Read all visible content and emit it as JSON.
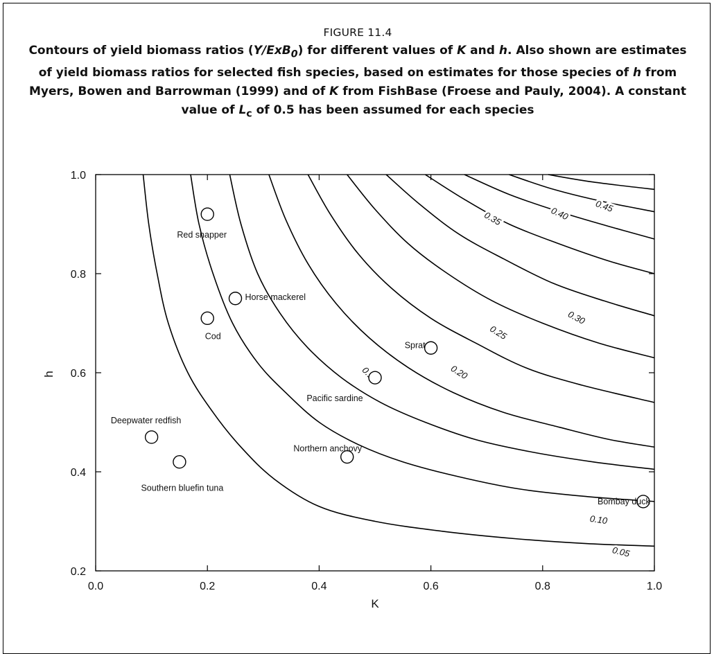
{
  "figure": {
    "number": "FIGURE 11.4",
    "title_parts": {
      "p1": "Contours of yield biomass ratios (",
      "p2": "Y/ExB",
      "p3": "0",
      "p4": ") for different values of ",
      "p5": "K",
      "p6": " and ",
      "p7": "h",
      "p8": ". Also shown are estimates of yield biomass ratios for selected fish species, based on estimates for those species of ",
      "p9": "h",
      "p10": " from Myers, Bowen and Barrowman (1999) and of ",
      "p11": "K",
      "p12": " from FishBase (Froese and Pauly, 2004). A constant value of ",
      "p13": "L",
      "p14": "c",
      "p15": " of 0.5 has been assumed for each species"
    }
  },
  "chart_data": {
    "type": "scatter",
    "xlabel": "K",
    "ylabel": "h",
    "xlim": [
      0.0,
      1.0
    ],
    "ylim": [
      0.2,
      1.0
    ],
    "x_ticks": [
      "0.0",
      "0.2",
      "0.4",
      "0.6",
      "0.8",
      "1.0"
    ],
    "y_ticks": [
      "0.2",
      "0.4",
      "0.6",
      "0.8",
      "1.0"
    ],
    "grid": false,
    "points": [
      {
        "name": "Red snapper",
        "K": 0.2,
        "h": 0.92
      },
      {
        "name": "Horse mackerel",
        "K": 0.25,
        "h": 0.75
      },
      {
        "name": "Cod",
        "K": 0.2,
        "h": 0.71
      },
      {
        "name": "Sprat",
        "K": 0.6,
        "h": 0.65
      },
      {
        "name": "Pacific sardine",
        "K": 0.5,
        "h": 0.59
      },
      {
        "name": "Deepwater redfish",
        "K": 0.1,
        "h": 0.47
      },
      {
        "name": "Southern bluefin tuna",
        "K": 0.15,
        "h": 0.42
      },
      {
        "name": "Northern anchovy",
        "K": 0.45,
        "h": 0.43
      },
      {
        "name": "Bombay duck",
        "K": 0.98,
        "h": 0.34
      }
    ],
    "contours": [
      {
        "level": "",
        "points": [
          [
            0.085,
            1.0
          ],
          [
            0.095,
            0.9
          ],
          [
            0.11,
            0.8
          ],
          [
            0.13,
            0.7
          ],
          [
            0.165,
            0.6
          ],
          [
            0.21,
            0.52
          ],
          [
            0.26,
            0.45
          ],
          [
            0.32,
            0.385
          ],
          [
            0.4,
            0.33
          ],
          [
            0.5,
            0.3
          ],
          [
            0.62,
            0.28
          ],
          [
            0.75,
            0.265
          ],
          [
            0.88,
            0.255
          ],
          [
            1.0,
            0.25
          ]
        ]
      },
      {
        "level": "0.05",
        "points": [
          [
            0.17,
            1.0
          ],
          [
            0.185,
            0.9
          ],
          [
            0.21,
            0.8
          ],
          [
            0.245,
            0.7
          ],
          [
            0.29,
            0.62
          ],
          [
            0.34,
            0.56
          ],
          [
            0.4,
            0.5
          ],
          [
            0.47,
            0.455
          ],
          [
            0.55,
            0.42
          ],
          [
            0.65,
            0.39
          ],
          [
            0.76,
            0.365
          ],
          [
            0.88,
            0.35
          ],
          [
            1.0,
            0.34
          ]
        ]
      },
      {
        "level": "0.10",
        "points": [
          [
            0.24,
            1.0
          ],
          [
            0.26,
            0.9
          ],
          [
            0.29,
            0.8
          ],
          [
            0.33,
            0.72
          ],
          [
            0.38,
            0.65
          ],
          [
            0.44,
            0.59
          ],
          [
            0.51,
            0.54
          ],
          [
            0.59,
            0.5
          ],
          [
            0.68,
            0.465
          ],
          [
            0.78,
            0.44
          ],
          [
            0.89,
            0.42
          ],
          [
            1.0,
            0.405
          ]
        ]
      },
      {
        "level": "0.15",
        "points": [
          [
            0.31,
            1.0
          ],
          [
            0.34,
            0.91
          ],
          [
            0.38,
            0.82
          ],
          [
            0.43,
            0.74
          ],
          [
            0.49,
            0.67
          ],
          [
            0.56,
            0.61
          ],
          [
            0.64,
            0.56
          ],
          [
            0.73,
            0.52
          ],
          [
            0.83,
            0.49
          ],
          [
            0.92,
            0.465
          ],
          [
            1.0,
            0.45
          ]
        ]
      },
      {
        "level": "0.20",
        "points": [
          [
            0.38,
            1.0
          ],
          [
            0.42,
            0.92
          ],
          [
            0.47,
            0.84
          ],
          [
            0.53,
            0.77
          ],
          [
            0.6,
            0.71
          ],
          [
            0.68,
            0.66
          ],
          [
            0.77,
            0.61
          ],
          [
            0.87,
            0.575
          ],
          [
            1.0,
            0.54
          ]
        ]
      },
      {
        "level": "0.25",
        "points": [
          [
            0.45,
            1.0
          ],
          [
            0.5,
            0.93
          ],
          [
            0.56,
            0.86
          ],
          [
            0.63,
            0.8
          ],
          [
            0.71,
            0.745
          ],
          [
            0.8,
            0.7
          ],
          [
            0.9,
            0.66
          ],
          [
            1.0,
            0.63
          ]
        ]
      },
      {
        "level": "0.30",
        "points": [
          [
            0.52,
            1.0
          ],
          [
            0.58,
            0.94
          ],
          [
            0.65,
            0.88
          ],
          [
            0.73,
            0.83
          ],
          [
            0.82,
            0.78
          ],
          [
            0.91,
            0.745
          ],
          [
            1.0,
            0.715
          ]
        ]
      },
      {
        "level": "0.35",
        "points": [
          [
            0.59,
            1.0
          ],
          [
            0.66,
            0.95
          ],
          [
            0.74,
            0.9
          ],
          [
            0.83,
            0.86
          ],
          [
            0.92,
            0.825
          ],
          [
            1.0,
            0.8
          ]
        ]
      },
      {
        "level": "0.40",
        "points": [
          [
            0.66,
            1.0
          ],
          [
            0.74,
            0.96
          ],
          [
            0.83,
            0.925
          ],
          [
            0.92,
            0.895
          ],
          [
            1.0,
            0.87
          ]
        ]
      },
      {
        "level": "0.45",
        "points": [
          [
            0.74,
            1.0
          ],
          [
            0.82,
            0.97
          ],
          [
            0.91,
            0.945
          ],
          [
            1.0,
            0.925
          ]
        ]
      },
      {
        "level": "",
        "points": [
          [
            0.81,
            1.0
          ],
          [
            0.89,
            0.985
          ],
          [
            1.0,
            0.97
          ]
        ]
      }
    ],
    "contour_labels": [
      {
        "text": "0.05",
        "K": 0.94,
        "h": 0.237,
        "angle": 14
      },
      {
        "text": "0.10",
        "K": 0.9,
        "h": 0.302,
        "angle": 8
      },
      {
        "text": "0.15",
        "K": 0.49,
        "h": 0.595,
        "angle": 45
      },
      {
        "text": "0.20",
        "K": 0.65,
        "h": 0.6,
        "angle": 32
      },
      {
        "text": "0.25",
        "K": 0.72,
        "h": 0.68,
        "angle": 32
      },
      {
        "text": "0.30",
        "K": 0.86,
        "h": 0.71,
        "angle": 28
      },
      {
        "text": "0.35",
        "K": 0.71,
        "h": 0.91,
        "angle": 30
      },
      {
        "text": "0.40",
        "K": 0.83,
        "h": 0.92,
        "angle": 25
      },
      {
        "text": "0.45",
        "K": 0.91,
        "h": 0.935,
        "angle": 20
      }
    ]
  }
}
